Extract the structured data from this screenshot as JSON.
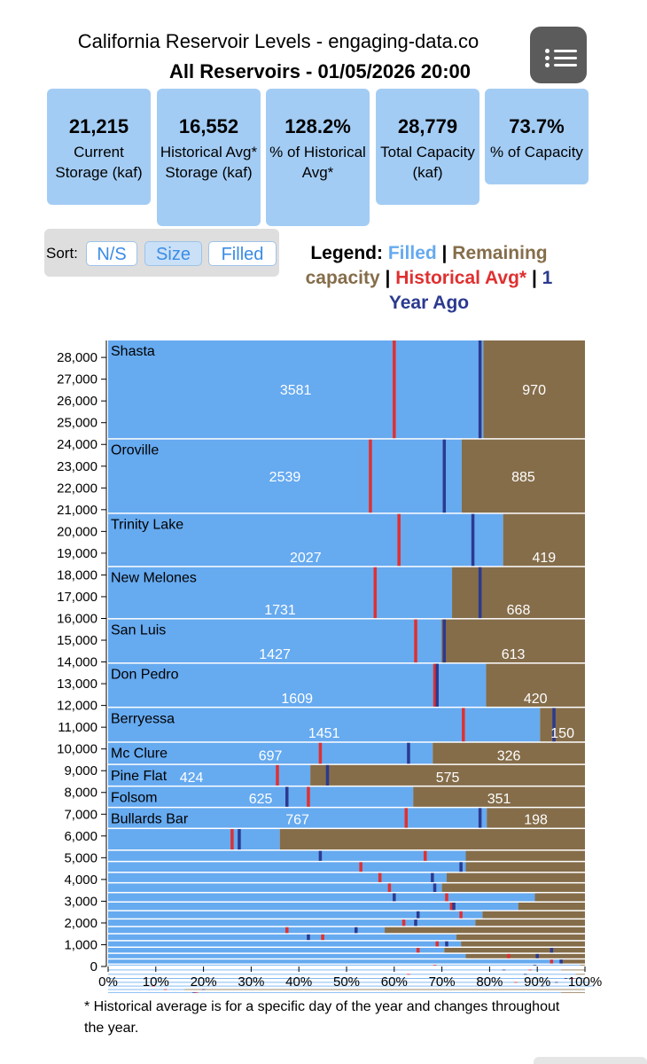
{
  "header": {
    "title": "California Reservoir Levels - engaging-data.co",
    "subtitle": "All Reservoirs - 01/05/2026 20:00"
  },
  "menu": {
    "icon": "list-menu-icon"
  },
  "cards": [
    {
      "value": "21,215",
      "label": "Current Storage (kaf)"
    },
    {
      "value": "16,552",
      "label": "Historical Avg* Storage (kaf)"
    },
    {
      "value": "128.2%",
      "label": "% of Historical Avg*"
    },
    {
      "value": "28,779",
      "label": "Total Capacity (kaf)"
    },
    {
      "value": "73.7%",
      "label": "% of Capacity"
    }
  ],
  "sort": {
    "label": "Sort:",
    "options": [
      "N/S",
      "Size",
      "Filled"
    ],
    "selected": "Size"
  },
  "legend": {
    "prefix": "Legend:",
    "filled": "Filled",
    "sep1": "|",
    "remaining": "Remaining capacity",
    "sep2": "|",
    "historical": "Historical Avg*",
    "sep3": "|",
    "year_ago": "1 Year Ago",
    "colors": {
      "filled": "#66aaf0",
      "remaining": "#856d4a",
      "historical": "#e03030",
      "year_ago": "#2b3a8f"
    }
  },
  "chart_data": {
    "type": "bar",
    "orientation": "horizontal-stacked-by-capacity",
    "x_ticks": [
      "0%",
      "10%",
      "20%",
      "30%",
      "40%",
      "50%",
      "60%",
      "70%",
      "80%",
      "90%",
      "100%"
    ],
    "y_ticks": [
      "0",
      "1,000",
      "2,000",
      "3,000",
      "4,000",
      "5,000",
      "6,000",
      "7,000",
      "8,000",
      "9,000",
      "10,000",
      "11,000",
      "12,000",
      "13,000",
      "14,000",
      "15,000",
      "16,000",
      "17,000",
      "18,000",
      "19,000",
      "20,000",
      "21,000",
      "22,000",
      "23,000",
      "24,000",
      "25,000",
      "26,000",
      "27,000",
      "28,000"
    ],
    "xlim": [
      0,
      100
    ],
    "ylim": [
      0,
      28779
    ],
    "reservoirs": [
      {
        "name": "Shasta",
        "capacity": 4552,
        "filled": 3581,
        "remaining": 970,
        "hist_pct": 60,
        "year_ago_pct": 78
      },
      {
        "name": "Oroville",
        "capacity": 3424,
        "filled": 2539,
        "remaining": 885,
        "hist_pct": 55,
        "year_ago_pct": 70.5
      },
      {
        "name": "Trinity Lake",
        "capacity": 2447,
        "filled": 2027,
        "remaining": 419,
        "hist_pct": 61,
        "year_ago_pct": 76.5
      },
      {
        "name": "New Melones",
        "capacity": 2400,
        "filled": 1731,
        "remaining": 668,
        "hist_pct": 56,
        "year_ago_pct": 78
      },
      {
        "name": "San Luis",
        "capacity": 2041,
        "filled": 1427,
        "remaining": 613,
        "hist_pct": 64.5,
        "year_ago_pct": 70.5
      },
      {
        "name": "Don Pedro",
        "capacity": 2030,
        "filled": 1609,
        "remaining": 420,
        "hist_pct": 68.5,
        "year_ago_pct": 69
      },
      {
        "name": "Berryessa",
        "capacity": 1602,
        "filled": 1451,
        "remaining": 150,
        "hist_pct": 74.5,
        "year_ago_pct": 93.5
      },
      {
        "name": "Mc Clure",
        "capacity": 1024,
        "filled": 697,
        "remaining": 326,
        "hist_pct": 44.5,
        "year_ago_pct": 63
      },
      {
        "name": "Pine Flat",
        "capacity": 1000,
        "filled": 424,
        "remaining": 575,
        "hist_pct": 35.5,
        "year_ago_pct": 46
      },
      {
        "name": "Folsom",
        "capacity": 977,
        "filled": 625,
        "remaining": 351,
        "hist_pct": 42,
        "year_ago_pct": 37.5
      },
      {
        "name": "Bullards Bar",
        "capacity": 966,
        "filled": 767,
        "remaining": 198,
        "hist_pct": 62.5,
        "year_ago_pct": 78
      }
    ],
    "small_reservoirs": [
      {
        "capacity": 1000,
        "filled_pct": 36,
        "hist_pct": 26,
        "year_ago_pct": 27.5
      },
      {
        "capacity": 520,
        "filled_pct": 75,
        "hist_pct": 66.5,
        "year_ago_pct": 44.5
      },
      {
        "capacity": 500,
        "filled_pct": 75,
        "hist_pct": 53,
        "year_ago_pct": 74
      },
      {
        "capacity": 480,
        "filled_pct": 71,
        "hist_pct": 57,
        "year_ago_pct": 68
      },
      {
        "capacity": 450,
        "filled_pct": 70,
        "hist_pct": 59,
        "year_ago_pct": 68.5
      },
      {
        "capacity": 430,
        "filled_pct": 89.5,
        "hist_pct": 71,
        "year_ago_pct": 60
      },
      {
        "capacity": 400,
        "filled_pct": 86,
        "hist_pct": 72,
        "year_ago_pct": 72.5
      },
      {
        "capacity": 380,
        "filled_pct": 78.5,
        "hist_pct": 74,
        "year_ago_pct": 65
      },
      {
        "capacity": 350,
        "filled_pct": 77,
        "hist_pct": 62,
        "year_ago_pct": 64.5
      },
      {
        "capacity": 330,
        "filled_pct": 58,
        "hist_pct": 37.5,
        "year_ago_pct": 52
      },
      {
        "capacity": 320,
        "filled_pct": 73,
        "hist_pct": 45,
        "year_ago_pct": 42
      },
      {
        "capacity": 300,
        "filled_pct": 74,
        "hist_pct": 69,
        "year_ago_pct": 71
      },
      {
        "capacity": 280,
        "filled_pct": 70.5,
        "hist_pct": 65,
        "year_ago_pct": 93
      },
      {
        "capacity": 260,
        "filled_pct": 75,
        "hist_pct": 84,
        "year_ago_pct": 90
      },
      {
        "capacity": 240,
        "filled_pct": 95,
        "hist_pct": 93,
        "year_ago_pct": 95
      },
      {
        "capacity": 220,
        "filled_pct": 99,
        "hist_pct": 68.5,
        "year_ago_pct": 89.5
      },
      {
        "capacity": 200,
        "filled_pct": 95,
        "hist_pct": 88.5,
        "year_ago_pct": 83
      },
      {
        "capacity": 190,
        "filled_pct": 98,
        "hist_pct": 63,
        "year_ago_pct": 87.5
      },
      {
        "capacity": 180,
        "filled_pct": 100,
        "hist_pct": 97.5,
        "year_ago_pct": 96
      },
      {
        "capacity": 170,
        "filled_pct": 101,
        "hist_pct": 85.5,
        "year_ago_pct": 94
      },
      {
        "capacity": 160,
        "filled_pct": 102,
        "hist_pct": 9.5,
        "year_ago_pct": 91
      },
      {
        "capacity": 150,
        "filled_pct": 16,
        "hist_pct": 12,
        "year_ago_pct": 20
      },
      {
        "capacity": 140,
        "filled_pct": 95,
        "hist_pct": 18.5,
        "year_ago_pct": 18
      },
      {
        "capacity": 130,
        "filled_pct": 90,
        "hist_pct": 20,
        "year_ago_pct": 30
      },
      {
        "capacity": 120,
        "filled_pct": 88,
        "hist_pct": 27,
        "year_ago_pct": 36
      },
      {
        "capacity": 110,
        "filled_pct": 85,
        "hist_pct": 50,
        "year_ago_pct": 40
      },
      {
        "capacity": 100,
        "filled_pct": 78,
        "hist_pct": 52,
        "year_ago_pct": 83
      },
      {
        "capacity": 90,
        "filled_pct": 82,
        "hist_pct": 57.5,
        "year_ago_pct": 79
      },
      {
        "capacity": 80,
        "filled_pct": 80,
        "hist_pct": 45,
        "year_ago_pct": 20
      },
      {
        "capacity": 70,
        "filled_pct": 75,
        "hist_pct": 58,
        "year_ago_pct": 17
      },
      {
        "capacity": 60,
        "filled_pct": 70,
        "hist_pct": 33,
        "year_ago_pct": 90
      },
      {
        "capacity": 60,
        "filled_pct": 68,
        "hist_pct": 60,
        "year_ago_pct": 12
      },
      {
        "capacity": 60,
        "filled_pct": 72,
        "hist_pct": 24,
        "year_ago_pct": 33
      },
      {
        "capacity": 60,
        "filled_pct": 65,
        "hist_pct": 15,
        "year_ago_pct": 82
      },
      {
        "capacity": 50,
        "filled_pct": 60,
        "hist_pct": 40,
        "year_ago_pct": 55
      },
      {
        "capacity": 50,
        "filled_pct": 55,
        "hist_pct": 30,
        "year_ago_pct": 25
      }
    ]
  },
  "footnote": "* Historical average is for a specific day of the year and changes throughout the year."
}
